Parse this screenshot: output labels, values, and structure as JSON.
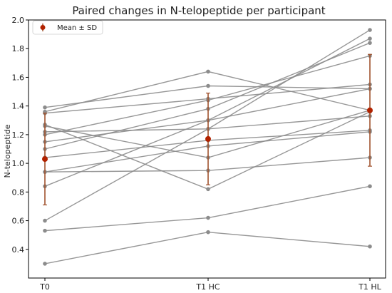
{
  "chart_data": {
    "type": "line",
    "title": "Paired changes in N-telopeptide per participant",
    "xlabel": "",
    "ylabel": "N-telopeptide",
    "categories": [
      "T0",
      "T1 HC",
      "T1 HL"
    ],
    "ylim": [
      0.2,
      2.0
    ],
    "yticks": [
      0.4,
      0.6,
      0.8,
      1.0,
      1.2,
      1.4,
      1.6,
      1.8,
      2.0
    ],
    "grid": false,
    "legend": {
      "position": "top-left",
      "entries": [
        "Mean ± SD"
      ]
    },
    "participant_color": "#8c8c8c",
    "mean_color": "#b22200",
    "sd_color": "#a0522d",
    "participants": [
      [
        0.3,
        0.52,
        0.42
      ],
      [
        0.53,
        0.62,
        0.84
      ],
      [
        0.6,
        1.24,
        1.93
      ],
      [
        0.84,
        1.3,
        1.87
      ],
      [
        0.94,
        0.95,
        1.04
      ],
      [
        0.94,
        1.12,
        1.22
      ],
      [
        1.04,
        1.16,
        1.23
      ],
      [
        1.1,
        1.38,
        1.84
      ],
      [
        1.15,
        1.3,
        1.52
      ],
      [
        1.2,
        1.44,
        1.75
      ],
      [
        1.22,
        1.24,
        1.33
      ],
      [
        1.26,
        1.04,
        1.37
      ],
      [
        1.27,
        0.82,
        1.36
      ],
      [
        1.35,
        1.45,
        1.55
      ],
      [
        1.36,
        1.64,
        1.37
      ],
      [
        1.39,
        1.54,
        1.52
      ]
    ],
    "series": [
      {
        "name": "Mean ± SD",
        "values": [
          1.03,
          1.17,
          1.37
        ],
        "sd": [
          0.32,
          0.32,
          0.39
        ]
      }
    ]
  }
}
